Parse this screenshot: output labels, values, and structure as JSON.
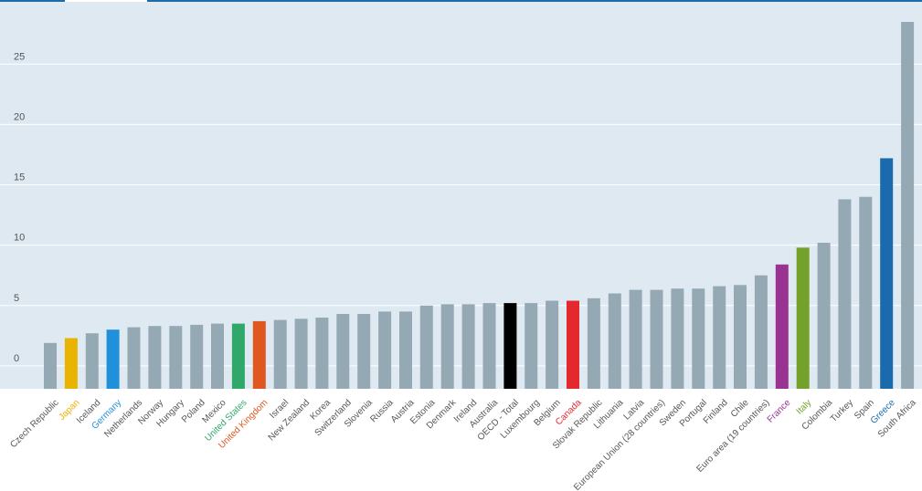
{
  "chart_data": {
    "type": "bar",
    "title": "",
    "xlabel": "",
    "ylabel": "",
    "ylim": [
      -1.9,
      28.5
    ],
    "yticks": [
      0,
      5,
      10,
      15,
      20,
      25
    ],
    "grid": true,
    "categories": [
      "Czech Republic",
      "Japan",
      "Iceland",
      "Germany",
      "Netherlands",
      "Norway",
      "Hungary",
      "Poland",
      "Mexico",
      "United States",
      "United Kingdom",
      "Israel",
      "New Zealand",
      "Korea",
      "Switzerland",
      "Slovenia",
      "Russia",
      "Austria",
      "Estonia",
      "Denmark",
      "Ireland",
      "Australia",
      "OECD - Total",
      "Luxembourg",
      "Belgium",
      "Canada",
      "Slovak Republic",
      "Lithuania",
      "Latvia",
      "European Union (28 countries)",
      "Sweden",
      "Portugal",
      "Finland",
      "Chile",
      "Euro area (19 countries)",
      "France",
      "Italy",
      "Colombia",
      "Turkey",
      "Spain",
      "Greece",
      "South Africa"
    ],
    "values": [
      1.9,
      2.3,
      2.7,
      3.0,
      3.2,
      3.3,
      3.3,
      3.4,
      3.5,
      3.5,
      3.7,
      3.8,
      3.9,
      4.0,
      4.3,
      4.3,
      4.5,
      4.5,
      5.0,
      5.1,
      5.1,
      5.2,
      5.2,
      5.2,
      5.4,
      5.4,
      5.6,
      6.0,
      6.3,
      6.3,
      6.4,
      6.4,
      6.6,
      6.7,
      7.5,
      8.4,
      9.8,
      10.2,
      13.8,
      14.0,
      17.2,
      28.5
    ],
    "default_bar_color": "#95a9b5",
    "default_label_color": "#555555",
    "highlights": {
      "Japan": {
        "bar": "#e8b400",
        "label": "#e8b400"
      },
      "Germany": {
        "bar": "#1f90d9",
        "label": "#1f90d9"
      },
      "United States": {
        "bar": "#2fa86a",
        "label": "#2fa86a"
      },
      "United Kingdom": {
        "bar": "#e0581f",
        "label": "#e0581f"
      },
      "OECD - Total": {
        "bar": "#000000",
        "label": "#555555"
      },
      "Canada": {
        "bar": "#e3292e",
        "label": "#e3292e"
      },
      "France": {
        "bar": "#993290",
        "label": "#993290"
      },
      "Italy": {
        "bar": "#74a12b",
        "label": "#74a12b"
      },
      "Greece": {
        "bar": "#1a6bad",
        "label": "#1a6bad"
      }
    },
    "colors": {
      "plot_background": "#dee9f2",
      "gridline": "#ffffff",
      "top_rule": "#1f6aa8",
      "top_tab": "#ffffff"
    }
  }
}
